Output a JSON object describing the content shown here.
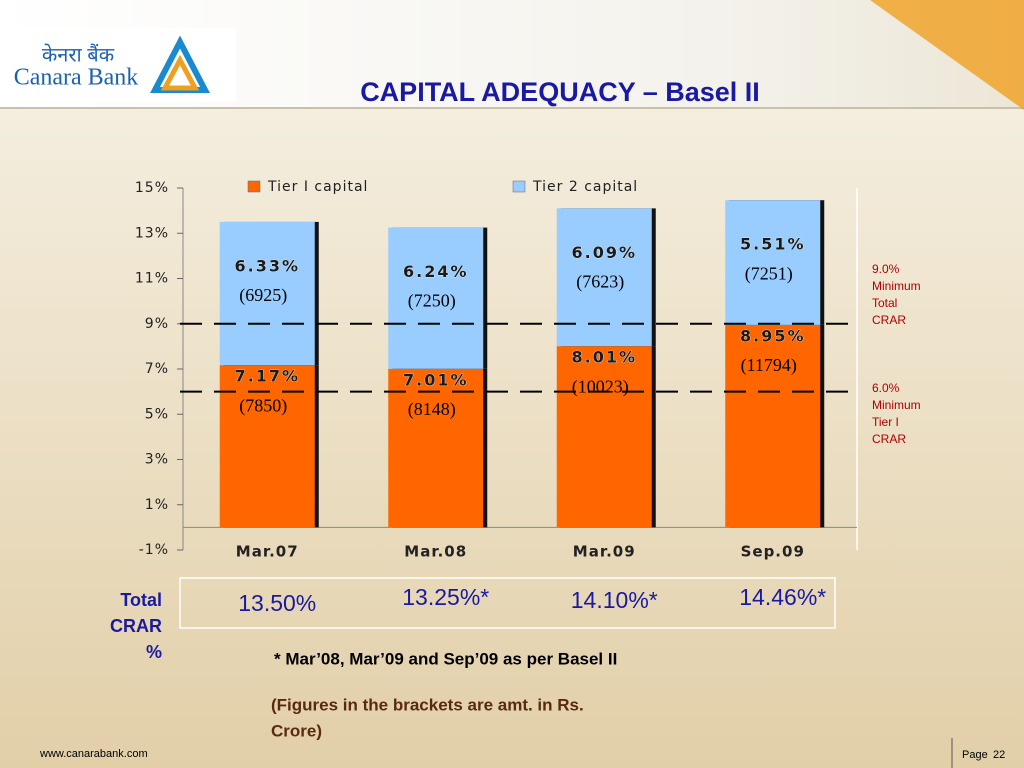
{
  "header": {
    "logo_hindi": "केनरा बैंक",
    "logo_english": "Canara Bank",
    "title": "CAPITAL ADEQUACY – Basel II"
  },
  "chart_data": {
    "type": "bar",
    "stacked": true,
    "categories": [
      "Mar.07",
      "Mar.08",
      "Mar.09",
      "Sep.09"
    ],
    "series": [
      {
        "name": "Tier I capital",
        "color": "#ff6600",
        "values": [
          7.17,
          7.01,
          8.01,
          8.95
        ],
        "value_labels": [
          "7.17%",
          "7.01%",
          "8.01%",
          "8.95%"
        ],
        "amount_labels": [
          "(7850)",
          "(8148)",
          "(10023)",
          "(11794)"
        ]
      },
      {
        "name": "Tier 2 capital",
        "color": "#99ccff",
        "values": [
          6.33,
          6.24,
          6.09,
          5.51
        ],
        "value_labels": [
          "6.33%",
          "6.24%",
          "6.09%",
          "5.51%"
        ],
        "amount_labels": [
          "(6925)",
          "(7250)",
          "(7623)",
          "(7251)"
        ]
      }
    ],
    "ylim": [
      -1,
      15
    ],
    "yticks": [
      {
        "value": -1,
        "label": "-1%"
      },
      {
        "value": 1,
        "label": "1%"
      },
      {
        "value": 3,
        "label": "3%"
      },
      {
        "value": 5,
        "label": "5%"
      },
      {
        "value": 7,
        "label": "7%"
      },
      {
        "value": 9,
        "label": "9%"
      },
      {
        "value": 11,
        "label": "11%"
      },
      {
        "value": 13,
        "label": "13%"
      },
      {
        "value": 15,
        "label": "15%"
      }
    ],
    "reference_lines": [
      {
        "value": 9,
        "label_lines": [
          "9.0%",
          "Minimum",
          "Total",
          "CRAR"
        ]
      },
      {
        "value": 6,
        "label_lines": [
          "6.0%",
          "Minimum",
          "Tier I",
          "CRAR"
        ]
      }
    ],
    "legend": "top"
  },
  "totals": {
    "label_lines": [
      "Total",
      "CRAR",
      "%"
    ],
    "values": [
      "13.50%",
      "13.25%*",
      "14.10%*",
      "14.46%*"
    ]
  },
  "notes": [
    "* Mar’08,  Mar’09  and Sep’09 as per Basel II",
    "(Figures in the brackets are amt. in Rs.",
    "Crore)"
  ],
  "footer": {
    "url": "www.canarabank.com",
    "page_label": "Page",
    "page_number": "22"
  }
}
